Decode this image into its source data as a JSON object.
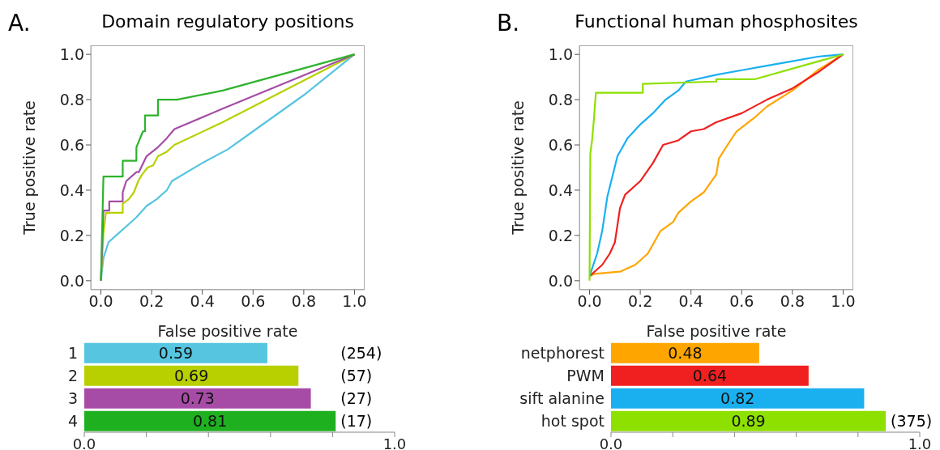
{
  "chart_data": [
    {
      "type": "line",
      "title": "Domain regulatory positions",
      "xlabel": "False positive rate",
      "ylabel": "True positive rate",
      "annotations": [
        "A."
      ],
      "xlim": [
        -0.04,
        1.04
      ],
      "ylim": [
        -0.04,
        1.04
      ],
      "xticks": [
        {
          "value": 0,
          "label": "0.0"
        },
        {
          "value": 0.2,
          "label": "0.2"
        },
        {
          "value": 0.4,
          "label": "0.4"
        },
        {
          "value": 0.6,
          "label": "0.6"
        },
        {
          "value": 0.8,
          "label": "0.8"
        },
        {
          "value": 1,
          "label": "1.0"
        }
      ],
      "yticks": [
        {
          "value": 0,
          "label": "0.0"
        },
        {
          "value": 0.2,
          "label": "0.2"
        },
        {
          "value": 0.4,
          "label": "0.4"
        },
        {
          "value": 0.6,
          "label": "0.6"
        },
        {
          "value": 0.8,
          "label": "0.8"
        },
        {
          "value": 1,
          "label": "1.0"
        }
      ],
      "series": [
        {
          "color": "#55c5e0",
          "x": [
            0,
            0.01,
            0.03,
            0.07,
            0.1,
            0.14,
            0.18,
            0.22,
            0.26,
            0.28,
            0.4,
            0.5,
            0.6,
            0.8,
            1
          ],
          "values": [
            0,
            0.1,
            0.17,
            0.21,
            0.24,
            0.28,
            0.33,
            0.36,
            0.4,
            0.44,
            0.52,
            0.58,
            0.66,
            0.82,
            1
          ]
        },
        {
          "color": "#b8d000",
          "x": [
            0,
            0.01,
            0.02,
            0.086,
            0.086,
            0.11,
            0.13,
            0.147,
            0.163,
            0.184,
            0.206,
            0.225,
            0.26,
            0.29,
            0.48,
            1
          ],
          "values": [
            0,
            0.21,
            0.3,
            0.3,
            0.34,
            0.36,
            0.39,
            0.44,
            0.47,
            0.5,
            0.51,
            0.55,
            0.57,
            0.6,
            0.7,
            1
          ]
        },
        {
          "color": "#a64ca6",
          "x": [
            0,
            0.01,
            0.033,
            0.033,
            0.086,
            0.086,
            0.1,
            0.14,
            0.15,
            0.18,
            0.225,
            0.26,
            0.29,
            0.48,
            1
          ],
          "values": [
            0,
            0.31,
            0.31,
            0.35,
            0.35,
            0.39,
            0.44,
            0.48,
            0.48,
            0.55,
            0.59,
            0.63,
            0.67,
            0.76,
            1
          ]
        },
        {
          "color": "#2db32d",
          "x": [
            0,
            0.01,
            0.086,
            0.086,
            0.14,
            0.14,
            0.166,
            0.174,
            0.174,
            0.225,
            0.225,
            0.3,
            0.48,
            1
          ],
          "values": [
            0,
            0.46,
            0.46,
            0.53,
            0.53,
            0.59,
            0.66,
            0.66,
            0.73,
            0.73,
            0.8,
            0.8,
            0.84,
            1
          ]
        }
      ]
    },
    {
      "type": "line",
      "title": "Functional human phosphosites",
      "xlabel": "False positive rate",
      "ylabel": "True positive rate",
      "annotations": [
        "B."
      ],
      "xlim": [
        -0.04,
        1.04
      ],
      "ylim": [
        -0.04,
        1.04
      ],
      "xticks": [
        {
          "value": 0,
          "label": "0.0"
        },
        {
          "value": 0.2,
          "label": "0.2"
        },
        {
          "value": 0.4,
          "label": "0.4"
        },
        {
          "value": 0.6,
          "label": "0.6"
        },
        {
          "value": 0.8,
          "label": "0.8"
        },
        {
          "value": 1,
          "label": "1.0"
        }
      ],
      "yticks": [
        {
          "value": 0,
          "label": "0.0"
        },
        {
          "value": 0.2,
          "label": "0.2"
        },
        {
          "value": 0.4,
          "label": "0.4"
        },
        {
          "value": 0.6,
          "label": "0.6"
        },
        {
          "value": 0.8,
          "label": "0.8"
        },
        {
          "value": 1,
          "label": "1.0"
        }
      ],
      "series": [
        {
          "color": "#ffa500",
          "x": [
            0,
            0.02,
            0.12,
            0.18,
            0.23,
            0.28,
            0.33,
            0.35,
            0.4,
            0.45,
            0.5,
            0.51,
            0.55,
            0.58,
            0.65,
            0.7,
            0.8,
            0.9,
            1
          ],
          "values": [
            0.02,
            0.03,
            0.04,
            0.07,
            0.12,
            0.22,
            0.26,
            0.3,
            0.35,
            0.39,
            0.47,
            0.54,
            0.61,
            0.66,
            0.72,
            0.77,
            0.84,
            0.93,
            1
          ]
        },
        {
          "color": "#f02020",
          "x": [
            0,
            0.05,
            0.08,
            0.1,
            0.12,
            0.14,
            0.2,
            0.25,
            0.29,
            0.35,
            0.4,
            0.45,
            0.5,
            0.6,
            0.7,
            0.8,
            0.9,
            1
          ],
          "values": [
            0.02,
            0.07,
            0.12,
            0.17,
            0.32,
            0.38,
            0.44,
            0.52,
            0.6,
            0.62,
            0.66,
            0.67,
            0.7,
            0.74,
            0.8,
            0.85,
            0.92,
            1
          ]
        },
        {
          "color": "#1ab0f0",
          "x": [
            0,
            0.03,
            0.05,
            0.07,
            0.09,
            0.11,
            0.15,
            0.2,
            0.25,
            0.3,
            0.35,
            0.38,
            0.5,
            0.6,
            0.7,
            0.8,
            0.9,
            1
          ],
          "values": [
            0.02,
            0.12,
            0.22,
            0.37,
            0.46,
            0.55,
            0.63,
            0.69,
            0.74,
            0.8,
            0.84,
            0.88,
            0.91,
            0.93,
            0.95,
            0.97,
            0.99,
            1
          ]
        },
        {
          "color": "#8ee000",
          "x": [
            0,
            0.003,
            0.01,
            0.017,
            0.025,
            0.21,
            0.21,
            0.5,
            0.5,
            0.65,
            1
          ],
          "values": [
            0,
            0.56,
            0.62,
            0.71,
            0.83,
            0.83,
            0.87,
            0.88,
            0.89,
            0.89,
            1
          ]
        }
      ]
    },
    {
      "type": "bar",
      "orientation": "horizontal",
      "categories": [
        "1",
        "2",
        "3",
        "4"
      ],
      "values": [
        0.59,
        0.69,
        0.73,
        0.81
      ],
      "colors": [
        "#55c5e0",
        "#b8d000",
        "#a64ca6",
        "#1fb01f"
      ],
      "data_labels": true,
      "xlim": [
        0,
        1
      ],
      "xticks": [
        {
          "value": 0,
          "label": "0.0"
        },
        {
          "value": 0.2,
          "label": null
        },
        {
          "value": 0.4,
          "label": null
        },
        {
          "value": 0.6,
          "label": null
        },
        {
          "value": 0.8,
          "label": null
        },
        {
          "value": 1,
          "label": "1.0"
        }
      ],
      "annotations": [
        "(254)",
        "(57)",
        "(27)",
        "(17)"
      ]
    },
    {
      "type": "bar",
      "orientation": "horizontal",
      "categories": [
        "netphorest",
        "PWM",
        "sift alanine",
        "hot spot"
      ],
      "values": [
        0.48,
        0.64,
        0.82,
        0.89
      ],
      "colors": [
        "#ffa500",
        "#f02020",
        "#1ab0f0",
        "#8ee000"
      ],
      "data_labels": true,
      "xlim": [
        0,
        1
      ],
      "xticks": [
        {
          "value": 0,
          "label": "0.0"
        },
        {
          "value": 0.2,
          "label": null
        },
        {
          "value": 0.4,
          "label": null
        },
        {
          "value": 0.6,
          "label": null
        },
        {
          "value": 0.8,
          "label": null
        },
        {
          "value": 1,
          "label": "1.0"
        }
      ],
      "annotations": [
        "(375)"
      ]
    }
  ]
}
